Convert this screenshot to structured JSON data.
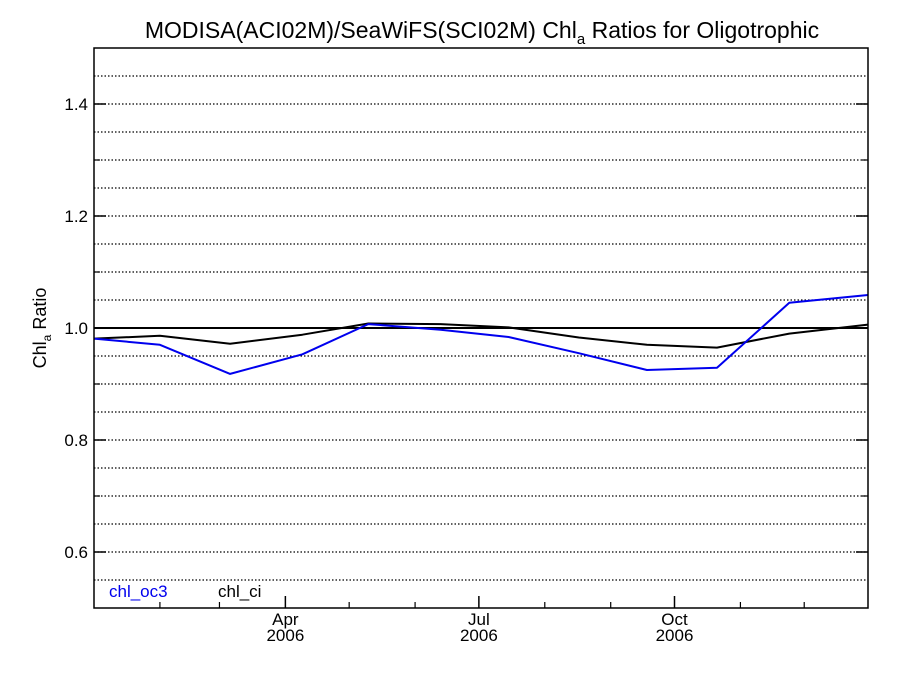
{
  "chart_data": {
    "type": "line",
    "title_main": "MODISA(ACI02M)/SeaWiFS(SCI02M)  Chl",
    "title_sub": "a",
    "title_tail": " Ratios for Oligotrophic",
    "ylabel_main": "Chl",
    "ylabel_sub": "a",
    "ylabel_tail": " Ratio",
    "ylim": [
      0.5,
      1.5
    ],
    "xlim": [
      "2006-01-01",
      "2006-12-31"
    ],
    "y_ticks": [
      {
        "value": 0.6,
        "label": "0.6"
      },
      {
        "value": 0.8,
        "label": "0.8"
      },
      {
        "value": 1.0,
        "label": "1.0"
      },
      {
        "value": 1.2,
        "label": "1.2"
      },
      {
        "value": 1.4,
        "label": "1.4"
      }
    ],
    "x_ticks": [
      {
        "date": "2006-04-01",
        "month": "Apr",
        "year": "2006"
      },
      {
        "date": "2006-07-01",
        "month": "Jul",
        "year": "2006"
      },
      {
        "date": "2006-10-01",
        "month": "Oct",
        "year": "2006"
      }
    ],
    "gridlines": "dotted horizontal every 0.05",
    "reference_line": 1.0,
    "series": [
      {
        "name": "chl_oc3",
        "color": "#0000ee",
        "points": [
          {
            "x": "2006-01-01",
            "y": 0.981
          },
          {
            "x": "2006-02-01",
            "y": 0.97
          },
          {
            "x": "2006-03-06",
            "y": 0.918
          },
          {
            "x": "2006-04-09",
            "y": 0.953
          },
          {
            "x": "2006-05-10",
            "y": 1.007
          },
          {
            "x": "2006-06-13",
            "y": 0.997
          },
          {
            "x": "2006-07-15",
            "y": 0.984
          },
          {
            "x": "2006-08-17",
            "y": 0.955
          },
          {
            "x": "2006-09-18",
            "y": 0.925
          },
          {
            "x": "2006-10-21",
            "y": 0.929
          },
          {
            "x": "2006-11-24",
            "y": 1.045
          },
          {
            "x": "2006-12-31",
            "y": 1.059
          }
        ]
      },
      {
        "name": "chl_ci",
        "color": "#000000",
        "points": [
          {
            "x": "2006-01-01",
            "y": 0.981
          },
          {
            "x": "2006-02-01",
            "y": 0.986
          },
          {
            "x": "2006-03-06",
            "y": 0.972
          },
          {
            "x": "2006-04-09",
            "y": 0.988
          },
          {
            "x": "2006-05-10",
            "y": 1.008
          },
          {
            "x": "2006-06-13",
            "y": 1.007
          },
          {
            "x": "2006-07-15",
            "y": 1.001
          },
          {
            "x": "2006-08-17",
            "y": 0.983
          },
          {
            "x": "2006-09-18",
            "y": 0.97
          },
          {
            "x": "2006-10-21",
            "y": 0.965
          },
          {
            "x": "2006-11-24",
            "y": 0.99
          },
          {
            "x": "2006-12-31",
            "y": 1.006
          }
        ]
      }
    ],
    "legend_placement": "bottom-left"
  }
}
